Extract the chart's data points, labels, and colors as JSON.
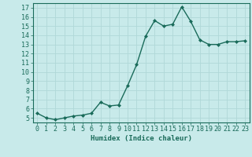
{
  "xlabel": "Humidex (Indice chaleur)",
  "ylabel": "",
  "x": [
    0,
    1,
    2,
    3,
    4,
    5,
    6,
    7,
    8,
    9,
    10,
    11,
    12,
    13,
    14,
    15,
    16,
    17,
    18,
    19,
    20,
    21,
    22,
    23
  ],
  "y": [
    5.5,
    5.0,
    4.8,
    5.0,
    5.2,
    5.3,
    5.5,
    6.7,
    6.3,
    6.4,
    8.5,
    10.8,
    13.9,
    15.6,
    15.0,
    15.2,
    17.1,
    15.5,
    13.5,
    13.0,
    13.0,
    13.3,
    13.3,
    13.4
  ],
  "line_color": "#1a6b5a",
  "marker": "D",
  "marker_size": 2,
  "bg_color": "#c8eaea",
  "grid_color": "#b0d8d8",
  "ylim": [
    4.5,
    17.5
  ],
  "xlim": [
    -0.5,
    23.5
  ],
  "yticks": [
    5,
    6,
    7,
    8,
    9,
    10,
    11,
    12,
    13,
    14,
    15,
    16,
    17
  ],
  "xticks": [
    0,
    1,
    2,
    3,
    4,
    5,
    6,
    7,
    8,
    9,
    10,
    11,
    12,
    13,
    14,
    15,
    16,
    17,
    18,
    19,
    20,
    21,
    22,
    23
  ],
  "label_fontsize": 6.5,
  "tick_fontsize": 6,
  "line_width": 1.0
}
